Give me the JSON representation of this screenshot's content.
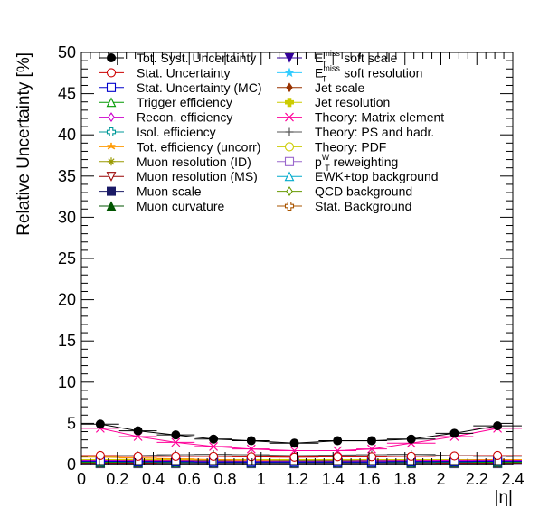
{
  "chart_data": {
    "type": "line",
    "xlabel": "|η|",
    "ylabel": "Relative Uncertainty [%]",
    "xlim": [
      0,
      2.4
    ],
    "ylim": [
      0,
      50
    ],
    "x_ticks": [
      "0",
      "0.2",
      "0.4",
      "0.6",
      "0.8",
      "1",
      "1.2",
      "1.4",
      "1.6",
      "1.8",
      "2",
      "2.2",
      "2.4"
    ],
    "y_ticks": [
      "0",
      "5",
      "10",
      "15",
      "20",
      "25",
      "30",
      "35",
      "40",
      "45",
      "50"
    ],
    "x": [
      0.105,
      0.315,
      0.525,
      0.735,
      0.945,
      1.185,
      1.425,
      1.615,
      1.835,
      2.075,
      2.315
    ],
    "x_errors": [
      0.105,
      0.105,
      0.105,
      0.105,
      0.105,
      0.135,
      0.105,
      0.085,
      0.135,
      0.105,
      0.135
    ],
    "series": [
      {
        "name": "Tot. Syst. Uncertainty",
        "marker": "filled-circle",
        "color": "#000000",
        "values": [
          4.9,
          4.1,
          3.6,
          3.1,
          2.9,
          2.6,
          2.9,
          2.9,
          3.1,
          3.8,
          4.7
        ]
      },
      {
        "name": "Stat. Uncertainty",
        "marker": "open-circle",
        "color": "#cc0000",
        "values": [
          1.1,
          1.0,
          1.0,
          1.0,
          0.95,
          0.9,
          0.95,
          0.95,
          1.0,
          1.05,
          1.1
        ]
      },
      {
        "name": "Stat. Uncertainty (MC)",
        "marker": "open-square",
        "color": "#0000cc",
        "values": [
          0.4,
          0.35,
          0.35,
          0.3,
          0.3,
          0.3,
          0.3,
          0.3,
          0.35,
          0.35,
          0.4
        ]
      },
      {
        "name": "Trigger efficiency",
        "marker": "open-triangle",
        "color": "#009900",
        "values": [
          0.3,
          0.3,
          0.3,
          0.3,
          0.3,
          0.3,
          0.3,
          0.3,
          0.3,
          0.3,
          0.3
        ]
      },
      {
        "name": "Recon. efficiency",
        "marker": "open-diamond",
        "color": "#cc00cc",
        "values": [
          0.5,
          0.45,
          0.45,
          0.4,
          0.4,
          0.4,
          0.4,
          0.45,
          0.45,
          0.5,
          0.5
        ]
      },
      {
        "name": "Isol. efficiency",
        "marker": "open-cross",
        "color": "#009999",
        "values": [
          0.3,
          0.3,
          0.25,
          0.25,
          0.25,
          0.25,
          0.25,
          0.25,
          0.25,
          0.3,
          0.3
        ]
      },
      {
        "name": "Tot. efficiency (uncorr)",
        "marker": "tri-star",
        "color": "#ff9900",
        "values": [
          0.9,
          0.8,
          0.7,
          0.6,
          0.5,
          0.4,
          0.4,
          0.4,
          0.45,
          0.5,
          0.6
        ]
      },
      {
        "name": "Muon resolution (ID)",
        "marker": "asterisk",
        "color": "#999900",
        "values": [
          0.3,
          0.3,
          0.3,
          0.3,
          0.3,
          0.3,
          0.3,
          0.3,
          0.3,
          0.3,
          0.3
        ]
      },
      {
        "name": "Muon resolution (MS)",
        "marker": "open-triangle-down",
        "color": "#990000",
        "values": [
          0.2,
          0.2,
          0.2,
          0.2,
          0.2,
          0.2,
          0.2,
          0.2,
          0.2,
          0.2,
          0.2
        ]
      },
      {
        "name": "Muon scale",
        "marker": "filled-square",
        "color": "#1a1a66",
        "values": [
          0.2,
          0.2,
          0.2,
          0.2,
          0.2,
          0.2,
          0.2,
          0.2,
          0.2,
          0.2,
          0.2
        ]
      },
      {
        "name": "Muon curvature",
        "marker": "filled-triangle",
        "color": "#005500",
        "values": [
          0.15,
          0.15,
          0.15,
          0.15,
          0.15,
          0.15,
          0.15,
          0.15,
          0.15,
          0.15,
          0.15
        ]
      },
      {
        "name": "E_T^miss soft scale",
        "label_main": "E",
        "label_sub": "T",
        "label_sup": "miss",
        "label_rest": "soft scale",
        "marker": "filled-triangle-down",
        "color": "#330099",
        "values": [
          0.3,
          0.3,
          0.3,
          0.3,
          0.3,
          0.3,
          0.3,
          0.3,
          0.3,
          0.3,
          0.3
        ]
      },
      {
        "name": "E_T^miss soft resolution",
        "label_main": "E",
        "label_sub": "T",
        "label_sup": "miss",
        "label_rest": "soft resolution",
        "marker": "star",
        "color": "#33ccff",
        "values": [
          0.2,
          0.2,
          0.2,
          0.2,
          0.2,
          0.2,
          0.2,
          0.2,
          0.2,
          0.2,
          0.2
        ]
      },
      {
        "name": "Jet scale",
        "marker": "filled-diamond",
        "color": "#993300",
        "values": [
          0.4,
          0.4,
          0.35,
          0.35,
          0.35,
          0.35,
          0.35,
          0.35,
          0.35,
          0.4,
          0.4
        ]
      },
      {
        "name": "Jet resolution",
        "marker": "filled-cross",
        "color": "#cccc00",
        "values": [
          0.3,
          0.3,
          0.3,
          0.3,
          0.3,
          0.3,
          0.3,
          0.3,
          0.3,
          0.3,
          0.3
        ]
      },
      {
        "name": "Theory: Matrix element",
        "marker": "x",
        "color": "#ff0099",
        "values": [
          4.4,
          3.4,
          2.7,
          2.2,
          1.9,
          1.7,
          1.7,
          1.9,
          2.6,
          3.4,
          4.4
        ]
      },
      {
        "name": "Theory: PS and hadr.",
        "marker": "plus",
        "color": "#555555",
        "values": [
          1.0,
          1.1,
          1.2,
          1.25,
          1.2,
          1.1,
          1.15,
          1.2,
          1.25,
          1.1,
          1.0
        ]
      },
      {
        "name": "Theory: PDF",
        "marker": "open-circle",
        "color": "#cccc00",
        "values": [
          0.6,
          0.6,
          0.6,
          0.6,
          0.6,
          0.6,
          0.6,
          0.6,
          0.6,
          0.6,
          0.6
        ]
      },
      {
        "name": "p_T^W reweighting",
        "label_main": "p",
        "label_sub": "T",
        "label_sup": "W",
        "label_rest": "reweighting",
        "marker": "open-square",
        "color": "#9966cc",
        "values": [
          0.1,
          0.1,
          0.1,
          0.1,
          0.1,
          0.1,
          0.1,
          0.1,
          0.1,
          0.1,
          0.1
        ]
      },
      {
        "name": "EWK+top background",
        "marker": "open-triangle",
        "color": "#00aacc",
        "values": [
          0.2,
          0.2,
          0.2,
          0.2,
          0.2,
          0.2,
          0.2,
          0.2,
          0.2,
          0.2,
          0.2
        ]
      },
      {
        "name": "QCD background",
        "marker": "open-diamond",
        "color": "#669900",
        "values": [
          0.6,
          0.6,
          0.6,
          0.55,
          0.55,
          0.5,
          0.55,
          0.55,
          0.6,
          0.6,
          0.6
        ]
      },
      {
        "name": "Stat. Background",
        "marker": "open-cross",
        "color": "#aa5500",
        "values": [
          0.5,
          0.5,
          0.5,
          0.5,
          0.5,
          0.5,
          0.5,
          0.5,
          0.5,
          0.5,
          0.5
        ]
      }
    ],
    "legend_position": "top"
  }
}
